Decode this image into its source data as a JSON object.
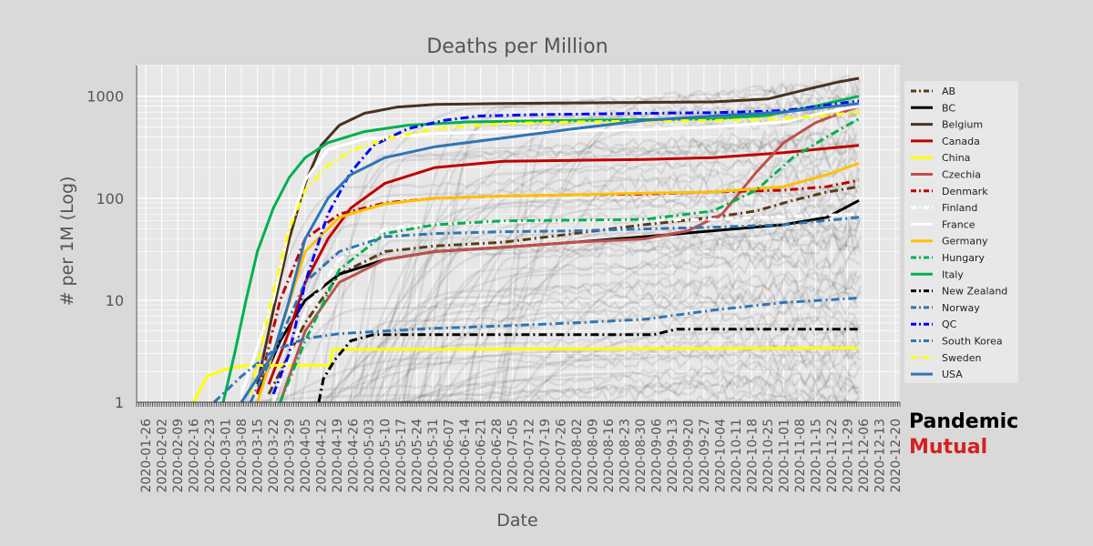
{
  "chart_data": {
    "type": "line",
    "title": "Deaths per Million",
    "xlabel": "Date",
    "ylabel": "# per 1M (Log)",
    "y_scale": "log",
    "ylim": [
      1,
      2000
    ],
    "yticks": [
      1,
      10,
      100,
      1000
    ],
    "ytick_labels": [
      "1",
      "10",
      "100",
      "1000"
    ],
    "xlim": [
      "2020-01-22",
      "2020-12-22"
    ],
    "xticks": [
      "2020-01-26",
      "2020-02-02",
      "2020-02-09",
      "2020-02-16",
      "2020-02-23",
      "2020-03-01",
      "2020-03-08",
      "2020-03-15",
      "2020-03-22",
      "2020-03-29",
      "2020-04-05",
      "2020-04-12",
      "2020-04-19",
      "2020-04-26",
      "2020-05-03",
      "2020-05-10",
      "2020-05-17",
      "2020-05-24",
      "2020-05-31",
      "2020-06-07",
      "2020-06-14",
      "2020-06-21",
      "2020-06-28",
      "2020-07-05",
      "2020-07-12",
      "2020-07-19",
      "2020-07-26",
      "2020-08-02",
      "2020-08-09",
      "2020-08-16",
      "2020-08-23",
      "2020-08-30",
      "2020-09-06",
      "2020-09-13",
      "2020-09-20",
      "2020-09-27",
      "2020-10-04",
      "2020-10-11",
      "2020-10-18",
      "2020-10-25",
      "2020-11-01",
      "2020-11-08",
      "2020-11-15",
      "2020-11-22",
      "2020-11-29",
      "2020-12-06",
      "2020-12-13",
      "2020-12-20"
    ],
    "grid": true,
    "legend_position": "right",
    "series": [
      {
        "name": "AB",
        "color": "#5a3c14",
        "dash": "dashdot",
        "x": [
          "2020-03-20",
          "2020-04-05",
          "2020-04-20",
          "2020-05-10",
          "2020-06-01",
          "2020-07-01",
          "2020-08-01",
          "2020-09-01",
          "2020-10-01",
          "2020-10-20",
          "2020-11-05",
          "2020-11-20",
          "2020-12-04"
        ],
        "y": [
          1.2,
          6,
          18,
          30,
          34,
          37,
          45,
          55,
          65,
          75,
          95,
          115,
          130
        ]
      },
      {
        "name": "BC",
        "color": "#000000",
        "dash": "solid",
        "x": [
          "2020-03-15",
          "2020-03-25",
          "2020-04-05",
          "2020-04-20",
          "2020-05-10",
          "2020-06-01",
          "2020-07-01",
          "2020-08-01",
          "2020-09-01",
          "2020-10-01",
          "2020-11-01",
          "2020-11-20",
          "2020-12-04"
        ],
        "y": [
          1.2,
          4,
          10,
          18,
          25,
          30,
          33,
          37,
          42,
          48,
          55,
          65,
          95
        ]
      },
      {
        "name": "Belgium",
        "color": "#4a3120",
        "dash": "solid",
        "x": [
          "2020-03-15",
          "2020-03-22",
          "2020-03-29",
          "2020-04-05",
          "2020-04-12",
          "2020-04-20",
          "2020-05-01",
          "2020-05-15",
          "2020-06-01",
          "2020-07-01",
          "2020-08-01",
          "2020-09-01",
          "2020-10-01",
          "2020-10-25",
          "2020-11-10",
          "2020-11-25",
          "2020-12-04"
        ],
        "y": [
          1.5,
          8,
          40,
          140,
          330,
          520,
          680,
          780,
          830,
          850,
          860,
          870,
          880,
          940,
          1150,
          1380,
          1500
        ]
      },
      {
        "name": "Canada",
        "color": "#c00000",
        "dash": "solid",
        "x": [
          "2020-03-20",
          "2020-03-29",
          "2020-04-05",
          "2020-04-15",
          "2020-04-25",
          "2020-05-10",
          "2020-06-01",
          "2020-07-01",
          "2020-08-01",
          "2020-09-01",
          "2020-10-01",
          "2020-11-01",
          "2020-12-04"
        ],
        "y": [
          1.5,
          5,
          15,
          40,
          80,
          140,
          200,
          230,
          235,
          240,
          250,
          280,
          330
        ]
      },
      {
        "name": "China",
        "color": "#ffff00",
        "dash": "solid",
        "x": [
          "2020-02-16",
          "2020-02-22",
          "2020-03-01",
          "2020-03-10",
          "2020-04-16",
          "2020-04-17",
          "2020-06-01",
          "2020-12-04"
        ],
        "y": [
          1,
          1.8,
          2.1,
          2.3,
          2.3,
          3.3,
          3.3,
          3.4
        ]
      },
      {
        "name": "Czechia",
        "color": "#c0504d",
        "dash": "solid",
        "x": [
          "2020-03-25",
          "2020-04-05",
          "2020-04-20",
          "2020-05-10",
          "2020-06-01",
          "2020-07-01",
          "2020-08-01",
          "2020-09-01",
          "2020-09-20",
          "2020-10-05",
          "2020-10-20",
          "2020-11-01",
          "2020-11-15",
          "2020-12-04"
        ],
        "y": [
          1,
          5,
          15,
          25,
          30,
          33,
          37,
          40,
          48,
          70,
          180,
          350,
          550,
          800
        ]
      },
      {
        "name": "Denmark",
        "color": "#c00000",
        "dash": "dashdot",
        "x": [
          "2020-03-15",
          "2020-03-25",
          "2020-04-05",
          "2020-04-20",
          "2020-05-10",
          "2020-06-01",
          "2020-07-01",
          "2020-08-01",
          "2020-09-01",
          "2020-10-01",
          "2020-11-01",
          "2020-11-20",
          "2020-12-04"
        ],
        "y": [
          1.2,
          10,
          40,
          70,
          90,
          100,
          105,
          108,
          110,
          115,
          120,
          130,
          150
        ]
      },
      {
        "name": "Finland",
        "color": "#ffffff",
        "dash": "dashdot",
        "x": [
          "2020-03-22",
          "2020-04-05",
          "2020-04-20",
          "2020-05-10",
          "2020-06-01",
          "2020-07-01",
          "2020-08-01",
          "2020-09-01",
          "2020-10-01",
          "2020-11-01",
          "2020-12-04"
        ],
        "y": [
          1,
          8,
          25,
          50,
          56,
          58,
          60,
          61,
          62,
          66,
          70
        ]
      },
      {
        "name": "France",
        "color": "#ffffff",
        "dash": "solid",
        "x": [
          "2020-03-08",
          "2020-03-22",
          "2020-03-29",
          "2020-04-05",
          "2020-04-15",
          "2020-05-01",
          "2020-06-01",
          "2020-07-01",
          "2020-08-01",
          "2020-09-01",
          "2020-10-01",
          "2020-11-01",
          "2020-11-20",
          "2020-12-04"
        ],
        "y": [
          1.2,
          10,
          50,
          150,
          300,
          380,
          430,
          450,
          460,
          470,
          500,
          560,
          700,
          800
        ]
      },
      {
        "name": "Germany",
        "color": "#ffc000",
        "dash": "solid",
        "x": [
          "2020-03-15",
          "2020-03-25",
          "2020-04-05",
          "2020-04-20",
          "2020-05-10",
          "2020-06-01",
          "2020-07-01",
          "2020-08-01",
          "2020-09-01",
          "2020-10-01",
          "2020-11-01",
          "2020-11-20",
          "2020-12-04"
        ],
        "y": [
          1,
          5,
          30,
          65,
          88,
          100,
          105,
          108,
          112,
          115,
          130,
          170,
          220
        ]
      },
      {
        "name": "Hungary",
        "color": "#00b050",
        "dash": "dashdot",
        "x": [
          "2020-03-25",
          "2020-04-05",
          "2020-04-20",
          "2020-05-10",
          "2020-06-01",
          "2020-07-01",
          "2020-08-01",
          "2020-09-01",
          "2020-10-01",
          "2020-10-20",
          "2020-11-05",
          "2020-11-20",
          "2020-12-04"
        ],
        "y": [
          1,
          4,
          20,
          45,
          55,
          60,
          61,
          62,
          75,
          120,
          250,
          400,
          600
        ]
      },
      {
        "name": "Italy",
        "color": "#00b050",
        "dash": "solid",
        "x": [
          "2020-02-29",
          "2020-03-05",
          "2020-03-10",
          "2020-03-15",
          "2020-03-22",
          "2020-03-29",
          "2020-04-05",
          "2020-04-15",
          "2020-05-01",
          "2020-05-20",
          "2020-06-15",
          "2020-08-01",
          "2020-10-01",
          "2020-10-25",
          "2020-11-15",
          "2020-12-04"
        ],
        "y": [
          1,
          3,
          10,
          30,
          80,
          160,
          250,
          350,
          450,
          520,
          560,
          580,
          600,
          650,
          800,
          1000
        ]
      },
      {
        "name": "New Zealand",
        "color": "#000000",
        "dash": "dashdot",
        "x": [
          "2020-04-11",
          "2020-04-13",
          "2020-04-18",
          "2020-04-25",
          "2020-05-05",
          "2020-06-01",
          "2020-07-01",
          "2020-08-01",
          "2020-09-05",
          "2020-09-15",
          "2020-12-04"
        ],
        "y": [
          1,
          1.7,
          2.6,
          4,
          4.6,
          4.6,
          4.6,
          4.6,
          4.6,
          5.2,
          5.2
        ]
      },
      {
        "name": "Norway",
        "color": "#2e75b6",
        "dash": "dashdot",
        "x": [
          "2020-03-12",
          "2020-03-22",
          "2020-04-05",
          "2020-04-20",
          "2020-05-10",
          "2020-06-01",
          "2020-07-01",
          "2020-08-01",
          "2020-09-01",
          "2020-10-01",
          "2020-11-01",
          "2020-12-04"
        ],
        "y": [
          1,
          3,
          15,
          30,
          42,
          45,
          47,
          48,
          50,
          52,
          55,
          65
        ]
      },
      {
        "name": "QC",
        "color": "#0000ff",
        "dash": "dashdot",
        "x": [
          "2020-03-22",
          "2020-03-29",
          "2020-04-05",
          "2020-04-15",
          "2020-04-25",
          "2020-05-05",
          "2020-05-20",
          "2020-06-05",
          "2020-06-20",
          "2020-07-15",
          "2020-09-01",
          "2020-10-01",
          "2020-11-01",
          "2020-12-04"
        ],
        "y": [
          1.2,
          3,
          15,
          70,
          180,
          330,
          480,
          580,
          640,
          660,
          680,
          690,
          720,
          900
        ]
      },
      {
        "name": "South Korea",
        "color": "#2e75b6",
        "dash": "dashdot",
        "x": [
          "2020-02-25",
          "2020-03-08",
          "2020-03-22",
          "2020-04-05",
          "2020-04-20",
          "2020-05-10",
          "2020-06-01",
          "2020-07-01",
          "2020-08-01",
          "2020-09-01",
          "2020-10-01",
          "2020-11-01",
          "2020-12-04"
        ],
        "y": [
          1,
          1.8,
          3.2,
          4.2,
          4.7,
          5,
          5.3,
          5.6,
          6,
          6.5,
          8,
          9.5,
          10.5
        ]
      },
      {
        "name": "Sweden",
        "color": "#ffff00",
        "dash": "dashdot",
        "x": [
          "2020-03-12",
          "2020-03-22",
          "2020-03-29",
          "2020-04-05",
          "2020-04-15",
          "2020-04-25",
          "2020-05-10",
          "2020-06-01",
          "2020-07-01",
          "2020-08-01",
          "2020-09-01",
          "2020-10-01",
          "2020-11-01",
          "2020-11-20",
          "2020-12-04"
        ],
        "y": [
          1.2,
          12,
          50,
          120,
          210,
          290,
          380,
          480,
          540,
          560,
          570,
          580,
          600,
          650,
          700
        ]
      },
      {
        "name": "USA",
        "color": "#2e75b6",
        "dash": "solid",
        "x": [
          "2020-03-08",
          "2020-03-22",
          "2020-03-29",
          "2020-04-05",
          "2020-04-15",
          "2020-04-25",
          "2020-05-10",
          "2020-06-01",
          "2020-07-01",
          "2020-08-01",
          "2020-09-01",
          "2020-10-01",
          "2020-11-01",
          "2020-12-04"
        ],
        "y": [
          1,
          3,
          10,
          40,
          100,
          170,
          250,
          320,
          390,
          480,
          580,
          640,
          700,
          850
        ]
      }
    ]
  },
  "brand": {
    "line1": "Pandemic",
    "line2": "Mutual"
  }
}
